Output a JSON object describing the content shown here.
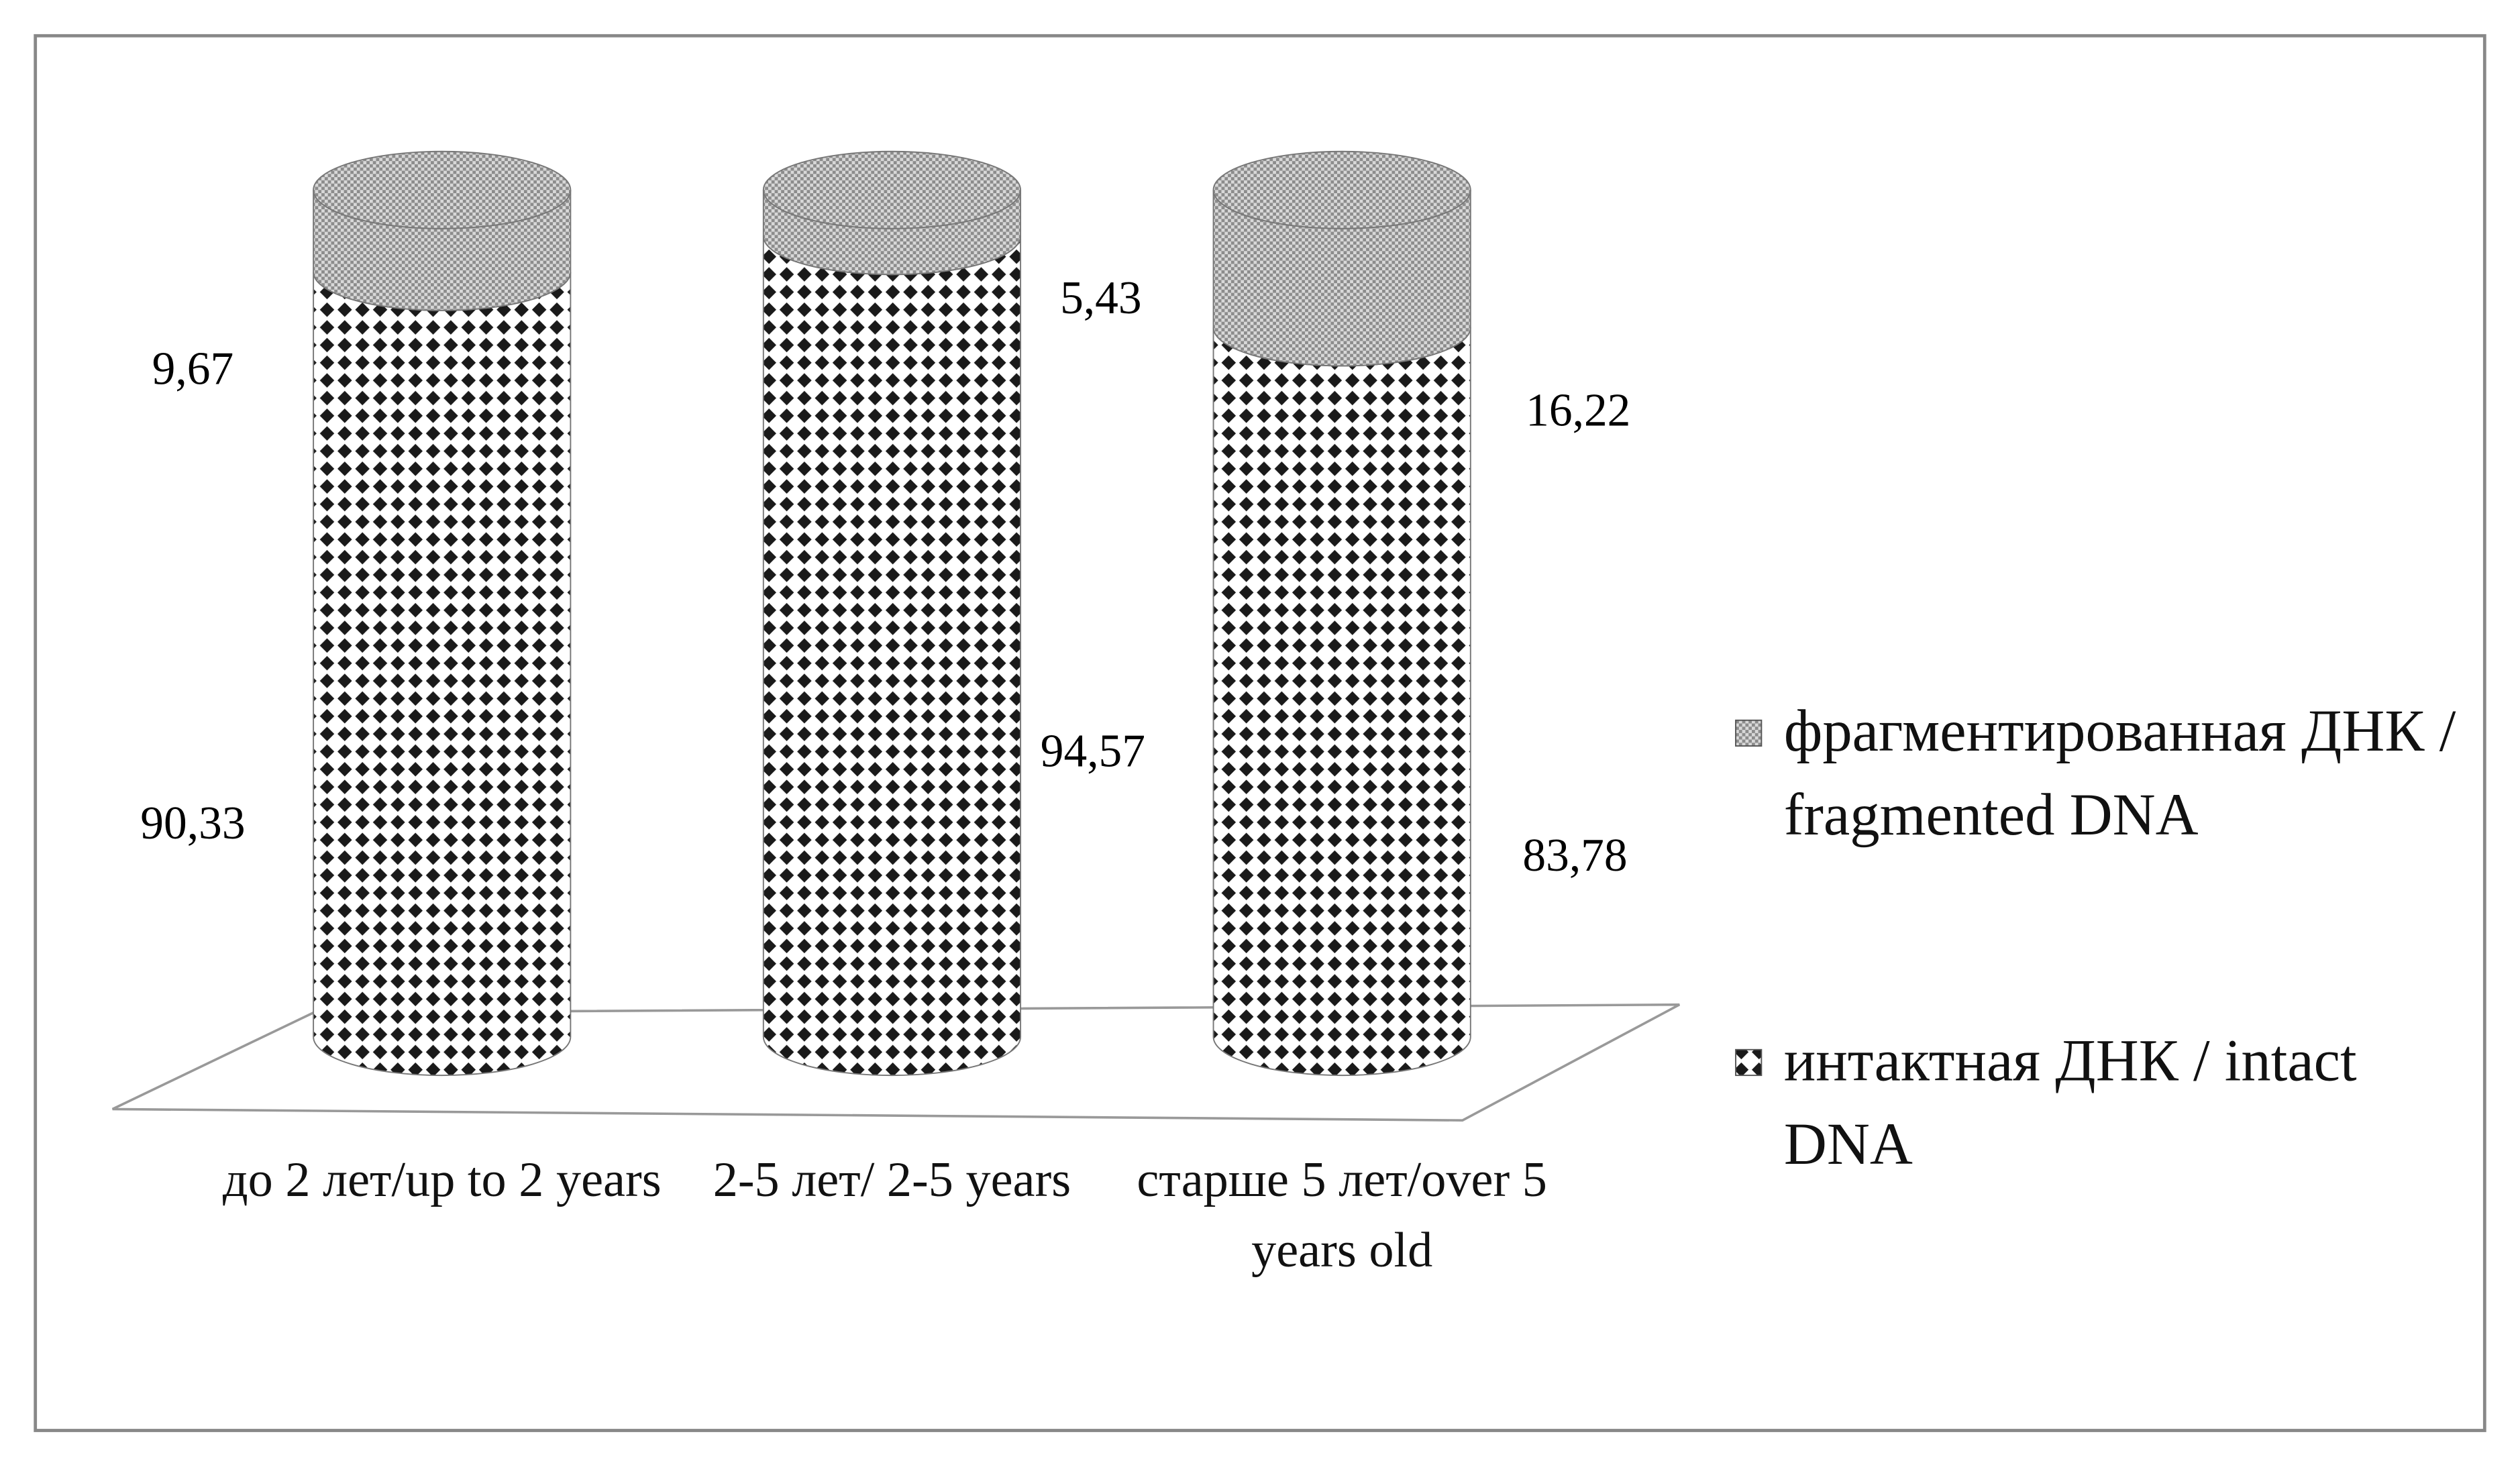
{
  "chart_data": {
    "type": "stacked_cylinder",
    "categories": [
      "до 2 лет/up to 2 years",
      "2-5 лет/ 2-5 years",
      "старше 5 лет/over 5 years old"
    ],
    "series": [
      {
        "name": "интактная ДНК / intact DNA",
        "color": "#1a1a1a",
        "values": [
          90.33,
          94.57,
          83.78
        ],
        "value_labels": [
          "90,33",
          "94,57",
          "83,78"
        ]
      },
      {
        "name": "фрагментированная ДНК / fragmented DNA",
        "color": "#8c8c8c",
        "values": [
          9.67,
          5.43,
          16.22
        ],
        "value_labels": [
          "9,67",
          "5,43",
          "16,22"
        ]
      }
    ]
  }
}
